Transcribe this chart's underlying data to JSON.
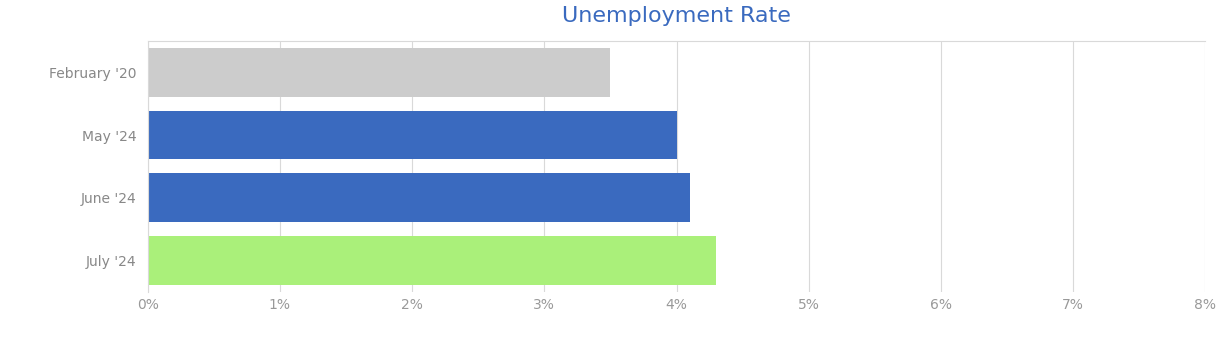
{
  "title": "Unemployment Rate",
  "title_color": "#3a6abf",
  "categories": [
    "February '20",
    "May '24",
    "June '24",
    "July '24"
  ],
  "values": [
    3.5,
    4.0,
    4.1,
    4.3
  ],
  "bar_colors": [
    "#cccccc",
    "#3a6abf",
    "#3a6abf",
    "#aaf07a"
  ],
  "xlim": [
    0,
    8
  ],
  "xtick_vals": [
    0,
    1,
    2,
    3,
    4,
    5,
    6,
    7,
    8
  ],
  "background_color": "#ffffff",
  "grid_color": "#d9d9d9",
  "title_fontsize": 16,
  "label_fontsize": 10,
  "tick_fontsize": 10,
  "bar_height": 0.78
}
